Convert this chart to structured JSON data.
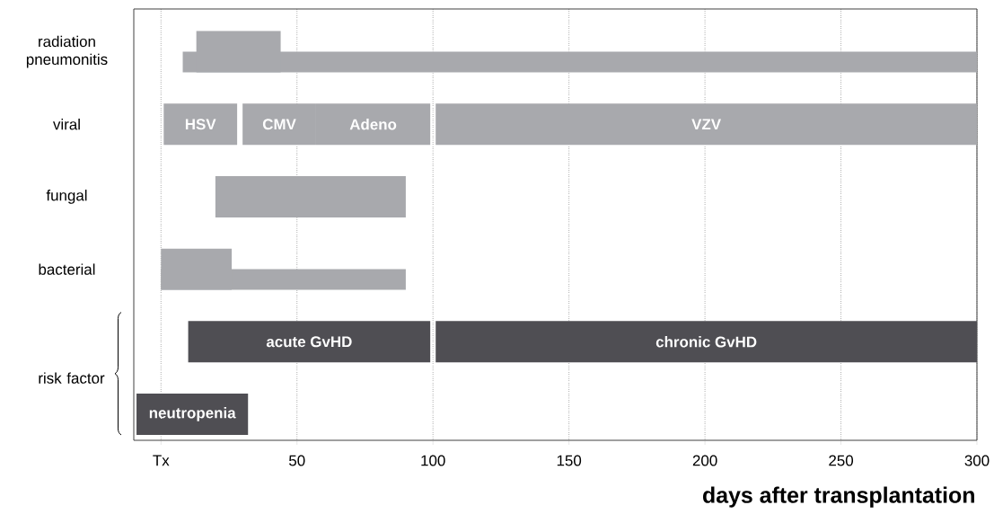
{
  "chart_data": {
    "type": "bar",
    "orientation": "horizontal",
    "xlabel": "days after transplantation",
    "categories": [
      "radiation pneumonitis",
      "viral",
      "fungal",
      "bacterial",
      null,
      null
    ],
    "series": [
      {
        "base": [
          13,
          1,
          20,
          0,
          10,
          -9
        ],
        "values": [
          31,
          27,
          70,
          26,
          89,
          41
        ],
        "colors": [
          "#a8a9ad",
          "#a8a9ad",
          "#a8a9ad",
          "#a8a9ad",
          "#4f4e53",
          "#4f4e53"
        ],
        "value_labels": [
          null,
          "HSV",
          null,
          null,
          "acute GvHD",
          "neutropenia"
        ]
      },
      {
        "base": [
          8,
          30,
          null,
          0,
          101,
          null
        ],
        "values": [
          292,
          27,
          null,
          90,
          199,
          null
        ],
        "colors": [
          "#a8a9ad",
          "#a8a9ad",
          null,
          "#a8a9ad",
          "#4f4e53",
          null
        ],
        "value_labels": [
          null,
          "CMV",
          null,
          null,
          "chronic GvHD",
          null
        ]
      },
      {
        "base": [
          null,
          57,
          null,
          null,
          null,
          null
        ],
        "values": [
          null,
          42,
          null,
          null,
          null,
          null
        ],
        "colors": [
          null,
          "#a8a9ad",
          null,
          null,
          null,
          null
        ],
        "value_labels": [
          null,
          "Adeno",
          null,
          null,
          null,
          null
        ]
      },
      {
        "base": [
          null,
          101,
          null,
          null,
          null,
          null
        ],
        "values": [
          null,
          199,
          null,
          null,
          null,
          null
        ],
        "colors": [
          null,
          "#a8a9ad",
          null,
          null,
          null,
          null
        ],
        "value_labels": [
          null,
          "VZV",
          null,
          null,
          null,
          null
        ]
      }
    ],
    "xlim": [
      -10,
      300
    ],
    "xticks": [
      {
        "value": 0,
        "label": "Tx"
      },
      50,
      100,
      150,
      200,
      250,
      300
    ],
    "grid": "x",
    "annotations": [
      "risk factor"
    ]
  }
}
